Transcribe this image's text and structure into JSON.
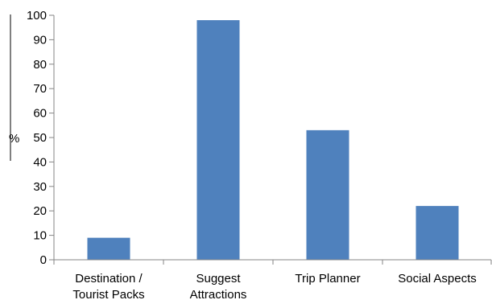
{
  "chart_data": {
    "type": "bar",
    "title": "",
    "xlabel": "",
    "ylabel": "%",
    "ylim": [
      0,
      100
    ],
    "ytick_step": 10,
    "ytick_labels": [
      "0",
      "10",
      "20",
      "30",
      "40",
      "50",
      "60",
      "70",
      "80",
      "90",
      "100"
    ],
    "categories": [
      [
        "Destination /",
        "Tourist Packs"
      ],
      [
        "Suggest",
        "Attractions"
      ],
      [
        "Trip Planner"
      ],
      [
        "Social Aspects"
      ]
    ],
    "values": [
      9,
      98,
      53,
      22
    ],
    "grid": false,
    "legend": "none",
    "colors": {
      "bar": "#4f81bd",
      "axis": "#868686"
    }
  }
}
